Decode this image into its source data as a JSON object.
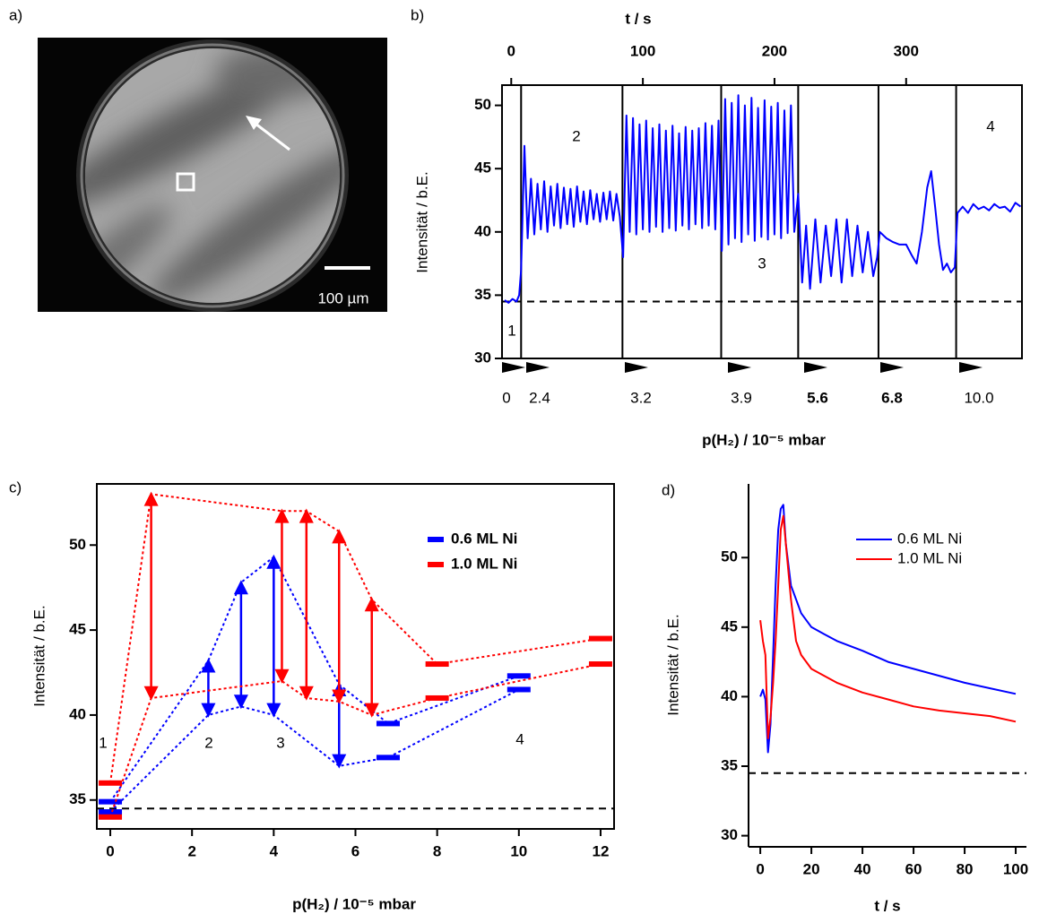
{
  "chart_data": [
    {
      "type": "image",
      "panel_label": "a)",
      "scale_bar_label": "100 µm"
    },
    {
      "type": "line",
      "panel_label": "b)",
      "x_label": "t / s",
      "x_axis_position": "top",
      "frame": true,
      "y_label": "Intensität / b.E.",
      "secondary_x_label": "p(H₂) / 10⁻⁵ mbar",
      "xlim": [
        -7,
        388
      ],
      "xticks": [
        0,
        100,
        200,
        300
      ],
      "ylim": [
        30,
        51.6
      ],
      "yticks": [
        30,
        35,
        40,
        45,
        50
      ],
      "baseline": 34.5,
      "step_lines": [
        7.5,
        84.5,
        159.5,
        218,
        279,
        338
      ],
      "pressure_ticks": [
        0,
        2.4,
        3.2,
        3.9,
        5.6,
        6.8,
        {
          "value": 10,
          "label": "10.0"
        }
      ],
      "region_labels": [
        "1",
        "2",
        "3",
        "4"
      ],
      "series": [
        {
          "color": "#0000ff",
          "x": [
            -5,
            -2,
            1,
            4,
            6,
            7.5,
            10,
            12.5,
            15,
            17.5,
            20,
            22.5,
            25,
            27.5,
            30,
            32.5,
            35,
            37.5,
            40,
            42.5,
            45,
            47.5,
            50,
            52.5,
            55,
            57.5,
            60,
            62.5,
            65,
            67.5,
            70,
            72.5,
            75,
            77.5,
            80,
            82.5,
            85,
            87.5,
            90,
            92.5,
            95,
            97.5,
            100,
            102.5,
            105,
            107.5,
            110,
            112.5,
            115,
            117.5,
            120,
            122.5,
            125,
            127.5,
            130,
            132.5,
            135,
            137.5,
            140,
            142.5,
            145,
            147.5,
            150,
            152.5,
            155,
            157.5,
            160,
            162.5,
            165,
            167.5,
            170,
            172.5,
            175,
            177.5,
            180,
            182.5,
            185,
            187.5,
            190,
            192.5,
            195,
            197.5,
            200,
            202.5,
            205,
            207.5,
            210,
            212.5,
            215,
            218,
            221,
            224,
            227,
            231,
            235,
            239,
            243,
            247,
            251,
            255,
            259,
            263,
            267,
            271,
            275,
            278,
            280,
            285,
            290,
            295,
            300,
            304,
            308,
            312,
            316,
            319,
            322,
            325,
            328,
            331,
            334,
            337,
            339,
            343,
            347,
            351,
            355,
            359,
            363,
            367,
            371,
            375,
            379,
            383,
            387
          ],
          "values": [
            34.6,
            34.4,
            34.7,
            34.5,
            35,
            37,
            46.8,
            39.5,
            44.2,
            39.8,
            43.8,
            40.2,
            44,
            40,
            43.6,
            40.5,
            43.8,
            40.3,
            43.5,
            40.6,
            43.4,
            40.4,
            43.6,
            40.8,
            43.2,
            40.6,
            43.3,
            41,
            43,
            40.8,
            43.1,
            41,
            43.2,
            40.9,
            43,
            41.2,
            38,
            49.2,
            40,
            49,
            39.8,
            48.5,
            40.2,
            48.8,
            40,
            48.2,
            40.4,
            48.5,
            40,
            48,
            40.3,
            48.4,
            40.1,
            47.8,
            40.5,
            48.3,
            40.2,
            48,
            40.6,
            48.2,
            40.3,
            48.6,
            40.5,
            48.4,
            40.2,
            48.8,
            38.5,
            50.5,
            39,
            50.2,
            39.5,
            50.8,
            39.2,
            50,
            39.8,
            50.6,
            39.3,
            49.8,
            39.6,
            50.4,
            39.4,
            49.9,
            39.8,
            50.2,
            39.5,
            49.6,
            39.9,
            50,
            40,
            43,
            36,
            40.5,
            35.5,
            41,
            36,
            40.5,
            36.5,
            41,
            36,
            41,
            36.5,
            40.5,
            36.8,
            40,
            36.5,
            38,
            40,
            39.5,
            39.2,
            39,
            39,
            38.2,
            37.5,
            40,
            43.5,
            44.8,
            42,
            39,
            37,
            37.5,
            36.8,
            37.2,
            41.5,
            42,
            41.5,
            42.2,
            41.8,
            42,
            41.7,
            42.2,
            41.9,
            42,
            41.6,
            42.3,
            42
          ]
        }
      ]
    },
    {
      "type": "range",
      "panel_label": "c)",
      "x_label": "p(H₂) / 10⁻⁵ mbar",
      "y_label": "Intensität / b.E.",
      "frame": true,
      "xlim": [
        -0.33,
        12.33
      ],
      "xticks": [
        0,
        2,
        4,
        6,
        8,
        10,
        12
      ],
      "ylim": [
        33.3,
        53.6
      ],
      "yticks": [
        35,
        40,
        45,
        50
      ],
      "baseline": 34.5,
      "legend": "upper right",
      "region_labels": [
        "1",
        "2",
        "3",
        "4"
      ],
      "series": [
        {
          "name": "0.6 ML Ni",
          "color": "#0000ff",
          "x": [
            0,
            2.4,
            3.2,
            4,
            5.6,
            6.8,
            10
          ],
          "max": [
            34.9,
            43.2,
            47.8,
            49.3,
            41.8,
            39.5,
            42.3
          ],
          "min": [
            34.3,
            40,
            40.5,
            40,
            37,
            37.5,
            41.5
          ],
          "markers": [
            "bar",
            "arrow",
            "arrow",
            "arrow",
            "arrow",
            "bar",
            "bar"
          ]
        },
        {
          "name": "1.0 ML Ni",
          "color": "#ff0000",
          "x": [
            0,
            1,
            4.2,
            4.8,
            5.6,
            6.4,
            8,
            12
          ],
          "max": [
            36,
            53,
            52,
            52,
            50.8,
            46.8,
            43,
            44.5
          ],
          "min": [
            34,
            41,
            42,
            41,
            40.8,
            40,
            41,
            43
          ],
          "markers": [
            "bar",
            "arrow",
            "arrow",
            "arrow",
            "arrow",
            "arrow",
            "bar",
            "bar"
          ]
        }
      ]
    },
    {
      "type": "line",
      "panel_label": "d)",
      "x_label": "t / s",
      "y_label": "Intensität / b.E.",
      "x_axis_position": "bottom",
      "frame": false,
      "xlim": [
        -4.6,
        104.2
      ],
      "xticks": [
        0,
        20,
        40,
        60,
        80,
        100
      ],
      "ylim": [
        29.2,
        55.3
      ],
      "yticks": [
        30,
        35,
        40,
        45,
        50
      ],
      "baseline": 34.5,
      "legend": "upper right",
      "series": [
        {
          "name": "0.6 ML Ni",
          "color": "#0000ff",
          "x": [
            0,
            1,
            2,
            3,
            4,
            5,
            6,
            7,
            8,
            9,
            10,
            12,
            14,
            16,
            20,
            25,
            30,
            40,
            50,
            60,
            70,
            80,
            90,
            100
          ],
          "values": [
            40,
            40.5,
            39.8,
            36,
            38,
            43,
            48,
            52,
            53.5,
            53.8,
            51,
            48,
            47,
            46,
            45,
            44.5,
            44,
            43.3,
            42.5,
            42,
            41.5,
            41,
            40.6,
            40.2
          ]
        },
        {
          "name": "1.0 ML Ni",
          "color": "#ff0000",
          "x": [
            0,
            1,
            2,
            3,
            4,
            5,
            6,
            7,
            8,
            9,
            10,
            12,
            14,
            16,
            20,
            25,
            30,
            40,
            50,
            60,
            70,
            80,
            90,
            100
          ],
          "values": [
            45.5,
            44,
            43,
            37,
            38.5,
            41,
            44,
            48,
            52,
            53,
            51,
            47,
            44,
            43,
            42,
            41.5,
            41,
            40.3,
            39.8,
            39.3,
            39,
            38.8,
            38.6,
            38.2
          ]
        }
      ]
    }
  ]
}
